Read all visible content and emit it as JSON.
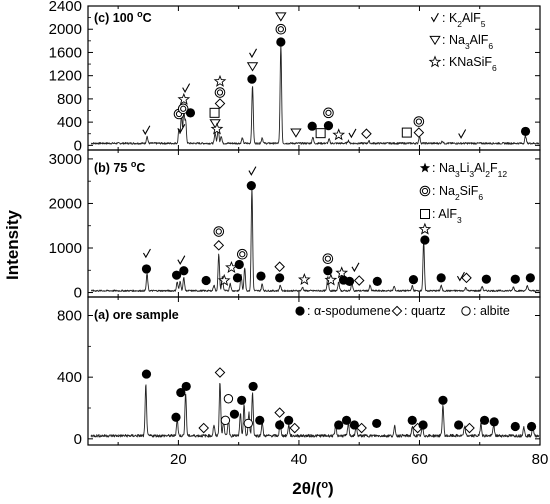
{
  "chart_data": {
    "type": "line",
    "xlabel": "2θ/(°)",
    "ylabel": "Intensity",
    "xlim": [
      5,
      80
    ],
    "x_ticks": [
      "20",
      "40",
      "60",
      "80"
    ],
    "panels": [
      {
        "id": "c",
        "label_parts": [
          "(c) 100 ",
          "o",
          "C"
        ],
        "ylim": [
          -80,
          2400
        ],
        "y_ticks": [
          0,
          400,
          800,
          1200,
          1600,
          2000,
          2400
        ],
        "baseline": 35,
        "peaks": [
          [
            14.8,
            120
          ],
          [
            20.1,
            250
          ],
          [
            20.5,
            500
          ],
          [
            20.9,
            560
          ],
          [
            21.2,
            380
          ],
          [
            26.1,
            180
          ],
          [
            26.6,
            260
          ],
          [
            27.1,
            130
          ],
          [
            30.6,
            90
          ],
          [
            32.3,
            1000
          ],
          [
            33.9,
            100
          ],
          [
            37.0,
            1700
          ],
          [
            42.3,
            110
          ],
          [
            45.0,
            70
          ],
          [
            48.2,
            50
          ],
          [
            51.6,
            40
          ],
          [
            60.0,
            120
          ],
          [
            63.8,
            40
          ],
          [
            77.6,
            130
          ]
        ],
        "markers": [
          {
            "x": 14.7,
            "y": 255,
            "sym": "check"
          },
          {
            "x": 20.1,
            "y": 540,
            "sym": "dcircle"
          },
          {
            "x": 20.5,
            "y": 280,
            "sym": "check"
          },
          {
            "x": 20.8,
            "y": 630,
            "sym": "dcircle"
          },
          {
            "x": 20.9,
            "y": 790,
            "sym": "star"
          },
          {
            "x": 21.3,
            "y": 980,
            "sym": "check"
          },
          {
            "x": 22.0,
            "y": 560,
            "sym": "dot"
          },
          {
            "x": 26.0,
            "y": 560,
            "sym": "square"
          },
          {
            "x": 26.1,
            "y": 380,
            "sym": "triangle"
          },
          {
            "x": 26.4,
            "y": 280,
            "sym": "star"
          },
          {
            "x": 26.9,
            "y": 720,
            "sym": "diamond"
          },
          {
            "x": 26.9,
            "y": 910,
            "sym": "dcircle"
          },
          {
            "x": 26.9,
            "y": 1100,
            "sym": "star"
          },
          {
            "x": 32.2,
            "y": 1140,
            "sym": "dot"
          },
          {
            "x": 32.3,
            "y": 1360,
            "sym": "triangle"
          },
          {
            "x": 32.4,
            "y": 1580,
            "sym": "check"
          },
          {
            "x": 37.0,
            "y": 1780,
            "sym": "dot"
          },
          {
            "x": 37.0,
            "y": 2000,
            "sym": "dcircle"
          },
          {
            "x": 37.0,
            "y": 2220,
            "sym": "triangle"
          },
          {
            "x": 39.5,
            "y": 220,
            "sym": "triangle"
          },
          {
            "x": 42.2,
            "y": 330,
            "sym": "dot"
          },
          {
            "x": 43.6,
            "y": 210,
            "sym": "square"
          },
          {
            "x": 44.9,
            "y": 340,
            "sym": "dot"
          },
          {
            "x": 44.9,
            "y": 560,
            "sym": "dcircle"
          },
          {
            "x": 46.6,
            "y": 180,
            "sym": "star"
          },
          {
            "x": 48.9,
            "y": 200,
            "sym": "check"
          },
          {
            "x": 51.2,
            "y": 200,
            "sym": "diamond"
          },
          {
            "x": 57.9,
            "y": 220,
            "sym": "square"
          },
          {
            "x": 59.9,
            "y": 220,
            "sym": "diamond"
          },
          {
            "x": 59.9,
            "y": 410,
            "sym": "dcircle"
          },
          {
            "x": 67.1,
            "y": 190,
            "sym": "check"
          },
          {
            "x": 77.6,
            "y": 240,
            "sym": "dot"
          }
        ]
      },
      {
        "id": "b",
        "label_parts": [
          "(b) 75 ",
          "o",
          "C"
        ],
        "ylim": [
          -100,
          3200
        ],
        "y_ticks": [
          0,
          1000,
          2000,
          3000
        ],
        "baseline": 40,
        "peaks": [
          [
            14.8,
            380
          ],
          [
            19.8,
            200
          ],
          [
            20.3,
            220
          ],
          [
            20.9,
            300
          ],
          [
            25.9,
            130
          ],
          [
            26.7,
            820
          ],
          [
            27.3,
            320
          ],
          [
            28.6,
            170
          ],
          [
            30.4,
            360
          ],
          [
            31.0,
            520
          ],
          [
            32.2,
            2300
          ],
          [
            33.9,
            150
          ],
          [
            36.9,
            130
          ],
          [
            40.6,
            80
          ],
          [
            44.8,
            330
          ],
          [
            46.6,
            200
          ],
          [
            48.8,
            180
          ],
          [
            51.8,
            120
          ],
          [
            55.8,
            100
          ],
          [
            58.8,
            110
          ],
          [
            60.7,
            1100
          ],
          [
            63.6,
            120
          ],
          [
            67.7,
            80
          ],
          [
            70.4,
            100
          ],
          [
            75.6,
            90
          ],
          [
            77.9,
            120
          ]
        ],
        "markers": [
          {
            "x": 14.7,
            "y": 530,
            "sym": "dot"
          },
          {
            "x": 14.8,
            "y": 870,
            "sym": "check"
          },
          {
            "x": 19.7,
            "y": 390,
            "sym": "dot"
          },
          {
            "x": 20.5,
            "y": 720,
            "sym": "check"
          },
          {
            "x": 20.9,
            "y": 490,
            "sym": "dot"
          },
          {
            "x": 24.6,
            "y": 270,
            "sym": "dot"
          },
          {
            "x": 26.7,
            "y": 1060,
            "sym": "diamond"
          },
          {
            "x": 26.7,
            "y": 1370,
            "sym": "dcircle"
          },
          {
            "x": 27.6,
            "y": 270,
            "sym": "star"
          },
          {
            "x": 28.8,
            "y": 560,
            "sym": "star"
          },
          {
            "x": 29.8,
            "y": 330,
            "sym": "dot"
          },
          {
            "x": 30.1,
            "y": 630,
            "sym": "dot"
          },
          {
            "x": 30.6,
            "y": 860,
            "sym": "dcircle"
          },
          {
            "x": 32.1,
            "y": 2400,
            "sym": "dot"
          },
          {
            "x": 32.3,
            "y": 2720,
            "sym": "check"
          },
          {
            "x": 33.7,
            "y": 370,
            "sym": "dot"
          },
          {
            "x": 36.8,
            "y": 330,
            "sym": "dot"
          },
          {
            "x": 36.8,
            "y": 580,
            "sym": "diamond"
          },
          {
            "x": 40.9,
            "y": 290,
            "sym": "star"
          },
          {
            "x": 44.8,
            "y": 490,
            "sym": "dot"
          },
          {
            "x": 44.8,
            "y": 760,
            "sym": "dcircle"
          },
          {
            "x": 45.3,
            "y": 280,
            "sym": "star"
          },
          {
            "x": 47.1,
            "y": 440,
            "sym": "star"
          },
          {
            "x": 47.4,
            "y": 280,
            "sym": "dot"
          },
          {
            "x": 48.4,
            "y": 250,
            "sym": "dot"
          },
          {
            "x": 49.4,
            "y": 560,
            "sym": "check"
          },
          {
            "x": 50.0,
            "y": 270,
            "sym": "diamond"
          },
          {
            "x": 53.0,
            "y": 250,
            "sym": "dot"
          },
          {
            "x": 59.0,
            "y": 290,
            "sym": "dot"
          },
          {
            "x": 60.9,
            "y": 1180,
            "sym": "dot"
          },
          {
            "x": 60.9,
            "y": 1420,
            "sym": "star"
          },
          {
            "x": 63.6,
            "y": 330,
            "sym": "dot"
          },
          {
            "x": 66.9,
            "y": 350,
            "sym": "check"
          },
          {
            "x": 67.8,
            "y": 330,
            "sym": "diamond"
          },
          {
            "x": 71.1,
            "y": 300,
            "sym": "dot"
          },
          {
            "x": 75.9,
            "y": 300,
            "sym": "dot"
          },
          {
            "x": 78.4,
            "y": 330,
            "sym": "dot"
          }
        ]
      },
      {
        "id": "a",
        "label_parts": [
          "(a) ore sample"
        ],
        "ylim": [
          -40,
          920
        ],
        "y_ticks": [
          0,
          400,
          800
        ],
        "baseline": 20,
        "peaks": [
          [
            14.6,
            330
          ],
          [
            19.8,
            110
          ],
          [
            21.2,
            280
          ],
          [
            25.9,
            70
          ],
          [
            26.9,
            350
          ],
          [
            27.5,
            100
          ],
          [
            28.3,
            110
          ],
          [
            30.3,
            140
          ],
          [
            30.9,
            200
          ],
          [
            31.7,
            150
          ],
          [
            32.3,
            280
          ],
          [
            33.9,
            90
          ],
          [
            36.9,
            100
          ],
          [
            38.3,
            70
          ],
          [
            46.1,
            60
          ],
          [
            48.2,
            80
          ],
          [
            49.5,
            60
          ],
          [
            55.9,
            60
          ],
          [
            58.8,
            60
          ],
          [
            60.5,
            60
          ],
          [
            63.9,
            200
          ],
          [
            67.5,
            60
          ],
          [
            70.2,
            80
          ],
          [
            72.3,
            70
          ],
          [
            77.3,
            60
          ],
          [
            78.8,
            60
          ]
        ],
        "markers": [
          {
            "x": 14.7,
            "y": 420,
            "sym": "dot"
          },
          {
            "x": 19.6,
            "y": 140,
            "sym": "dot"
          },
          {
            "x": 20.4,
            "y": 300,
            "sym": "dot"
          },
          {
            "x": 21.3,
            "y": 340,
            "sym": "dot"
          },
          {
            "x": 24.2,
            "y": 70,
            "sym": "diamond"
          },
          {
            "x": 26.9,
            "y": 430,
            "sym": "diamond"
          },
          {
            "x": 27.8,
            "y": 120,
            "sym": "ocircle"
          },
          {
            "x": 28.3,
            "y": 260,
            "sym": "ocircle"
          },
          {
            "x": 29.3,
            "y": 160,
            "sym": "dot"
          },
          {
            "x": 30.5,
            "y": 250,
            "sym": "dot"
          },
          {
            "x": 31.6,
            "y": 100,
            "sym": "ocircle"
          },
          {
            "x": 32.4,
            "y": 340,
            "sym": "dot"
          },
          {
            "x": 33.5,
            "y": 120,
            "sym": "dot"
          },
          {
            "x": 36.8,
            "y": 170,
            "sym": "diamond"
          },
          {
            "x": 36.8,
            "y": 90,
            "sym": "dot"
          },
          {
            "x": 38.3,
            "y": 120,
            "sym": "dot"
          },
          {
            "x": 39.3,
            "y": 70,
            "sym": "diamond"
          },
          {
            "x": 46.6,
            "y": 90,
            "sym": "dot"
          },
          {
            "x": 47.9,
            "y": 120,
            "sym": "dot"
          },
          {
            "x": 49.2,
            "y": 90,
            "sym": "dot"
          },
          {
            "x": 50.4,
            "y": 70,
            "sym": "diamond"
          },
          {
            "x": 52.9,
            "y": 100,
            "sym": "dot"
          },
          {
            "x": 58.8,
            "y": 120,
            "sym": "dot"
          },
          {
            "x": 59.7,
            "y": 70,
            "sym": "diamond"
          },
          {
            "x": 60.6,
            "y": 90,
            "sym": "dot"
          },
          {
            "x": 63.9,
            "y": 250,
            "sym": "dot"
          },
          {
            "x": 66.5,
            "y": 90,
            "sym": "dot"
          },
          {
            "x": 68.3,
            "y": 70,
            "sym": "diamond"
          },
          {
            "x": 70.8,
            "y": 120,
            "sym": "dot"
          },
          {
            "x": 72.4,
            "y": 110,
            "sym": "dot"
          },
          {
            "x": 75.9,
            "y": 80,
            "sym": "dot"
          },
          {
            "x": 78.6,
            "y": 80,
            "sym": "dot"
          }
        ]
      }
    ],
    "legends": [
      {
        "panel": "c",
        "entries": [
          {
            "sym": "check",
            "parts": [
              ": K",
              "2",
              "AlF",
              "5"
            ]
          },
          {
            "sym": "triangle",
            "parts": [
              ": Na",
              "3",
              "AlF",
              "6"
            ]
          },
          {
            "sym": "star",
            "parts": [
              ": KNaSiF",
              "6"
            ]
          }
        ]
      },
      {
        "panel": "b",
        "entries": [
          {
            "sym": "star",
            "parts": [
              ": Na",
              "3",
              "Li",
              "3",
              "Al",
              "2",
              "F",
              "12"
            ]
          },
          {
            "sym": "dcircle",
            "parts": [
              ": Na",
              "2",
              "SiF",
              "6"
            ]
          },
          {
            "sym": "square",
            "parts": [
              ": AlF",
              "3"
            ]
          }
        ]
      },
      {
        "panel": "a",
        "entries": [
          {
            "sym": "dot",
            "parts": [
              ": α-spodumene"
            ]
          },
          {
            "sym": "diamond",
            "parts": [
              ": quartz"
            ]
          },
          {
            "sym": "ocircle",
            "parts": [
              ": albite"
            ]
          }
        ]
      }
    ],
    "grid": false,
    "line_color": "#222222"
  }
}
